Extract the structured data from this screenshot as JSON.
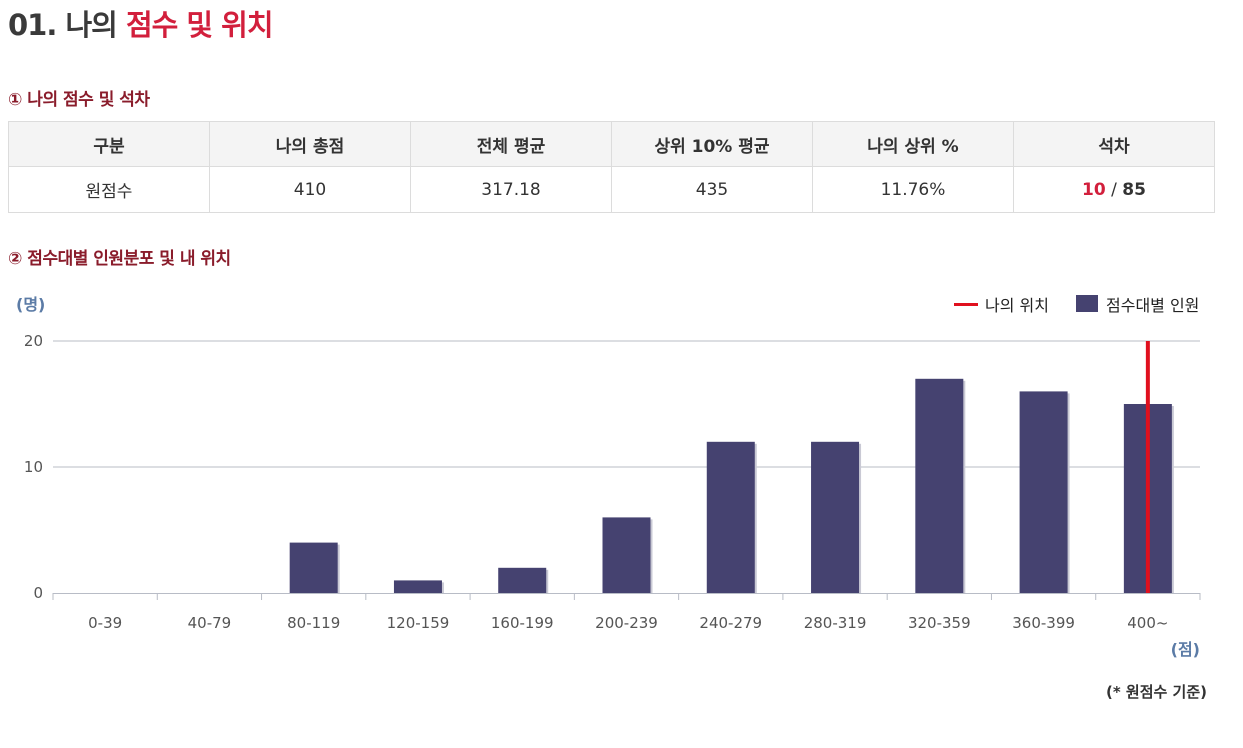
{
  "header": {
    "prefix": "01. 나의",
    "accent": "점수 및 위치"
  },
  "section1": {
    "title": "① 나의 점수 및 석차"
  },
  "table": {
    "headers": [
      "구분",
      "나의 총점",
      "전체 평균",
      "상위 10% 평균",
      "나의 상위 %",
      "석차"
    ],
    "row": {
      "label": "원점수",
      "my_total": "410",
      "overall_avg": "317.18",
      "top10_avg": "435",
      "my_top_pct": "11.76%",
      "rank_mine": "10",
      "rank_sep": " / ",
      "rank_total": "85"
    }
  },
  "section2": {
    "title": "② 점수대별 인원분포 및 내 위치"
  },
  "chart_data": {
    "type": "bar",
    "categories": [
      "0-39",
      "40-79",
      "80-119",
      "120-159",
      "160-199",
      "200-239",
      "240-279",
      "280-319",
      "320-359",
      "360-399",
      "400~"
    ],
    "series": [
      {
        "name": "점수대별 인원",
        "values": [
          0,
          0,
          4,
          1,
          2,
          6,
          12,
          12,
          17,
          16,
          15
        ]
      }
    ],
    "marker": {
      "name": "나의 위치",
      "category": "400~"
    },
    "ylim": [
      0,
      20
    ],
    "yticks": [
      0,
      10,
      20
    ],
    "ylabel": "(명)",
    "xlabel": "(점)",
    "legend_position": "top-right",
    "grid": true,
    "colors": {
      "bar": "#454270",
      "marker": "#e0101e",
      "grid": "#b8bcc6",
      "axis_label": "#5b7ba6"
    }
  },
  "footnote": "(* 원점수 기준)"
}
